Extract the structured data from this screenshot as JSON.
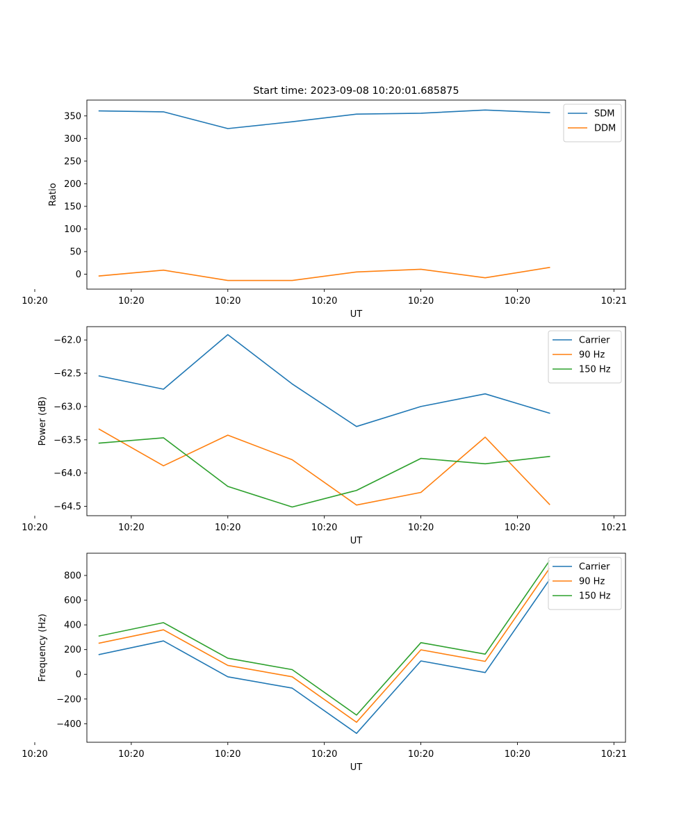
{
  "figure": {
    "title": "Start time: 2023-09-08 10:20:01.685875"
  },
  "chart_data": [
    {
      "type": "line",
      "xlabel": "UT",
      "ylabel": "Ratio",
      "x_index": [
        1,
        2,
        3,
        4,
        5,
        6,
        7,
        8
      ],
      "xlim": [
        0.81,
        9.18
      ],
      "x_ticks": [
        1,
        2.5,
        4,
        5.5,
        7,
        8.5
      ],
      "x_tick_positions": [
        0,
        1.5,
        3,
        4.5,
        6,
        7.5,
        9
      ],
      "x_tick_labels": [
        "10:20",
        "10:20",
        "10:20",
        "10:20",
        "10:20",
        "10:20",
        "10:21"
      ],
      "ylim": [
        -33,
        385
      ],
      "y_ticks": [
        0,
        50,
        100,
        150,
        200,
        250,
        300,
        350
      ],
      "y_tick_labels": [
        "0",
        "50",
        "100",
        "150",
        "200",
        "250",
        "300",
        "350"
      ],
      "legend_position": "top-right",
      "series": [
        {
          "name": "SDM",
          "color": "#1f77b4",
          "values": [
            361,
            359,
            322,
            337,
            354,
            356,
            363,
            357
          ]
        },
        {
          "name": "DDM",
          "color": "#ff7f0e",
          "values": [
            -4,
            9,
            -14,
            -14,
            5,
            11,
            -8,
            15
          ]
        }
      ]
    },
    {
      "type": "line",
      "xlabel": "UT",
      "ylabel": "Power (dB)",
      "x_index": [
        1,
        2,
        3,
        4,
        5,
        6,
        7,
        8
      ],
      "xlim": [
        0.81,
        9.18
      ],
      "x_tick_positions": [
        0,
        1.5,
        3,
        4.5,
        6,
        7.5,
        9
      ],
      "x_tick_labels": [
        "10:20",
        "10:20",
        "10:20",
        "10:20",
        "10:20",
        "10:20",
        "10:21"
      ],
      "ylim": [
        -64.64,
        -61.8
      ],
      "y_ticks": [
        -64.5,
        -64.0,
        -63.5,
        -63.0,
        -62.5,
        -62.0
      ],
      "y_tick_labels": [
        "−64.5",
        "−64.0",
        "−63.5",
        "−63.0",
        "−62.5",
        "−62.0"
      ],
      "legend_position": "top-right",
      "series": [
        {
          "name": "Carrier",
          "color": "#1f77b4",
          "values": [
            -62.54,
            -62.74,
            -61.92,
            -62.66,
            -63.3,
            -63.0,
            -62.81,
            -63.1
          ]
        },
        {
          "name": "90 Hz",
          "color": "#ff7f0e",
          "values": [
            -63.34,
            -63.89,
            -63.43,
            -63.8,
            -64.48,
            -64.29,
            -63.46,
            -64.47
          ]
        },
        {
          "name": "150 Hz",
          "color": "#2ca02c",
          "values": [
            -63.55,
            -63.47,
            -64.2,
            -64.51,
            -64.26,
            -63.78,
            -63.86,
            -63.75
          ]
        }
      ]
    },
    {
      "type": "line",
      "xlabel": "UT",
      "ylabel": "Frequency (Hz)",
      "x_index": [
        1,
        2,
        3,
        4,
        5,
        6,
        7,
        8
      ],
      "xlim": [
        0.81,
        9.18
      ],
      "x_tick_positions": [
        0,
        1.5,
        3,
        4.5,
        6,
        7.5,
        9
      ],
      "x_tick_labels": [
        "10:20",
        "10:20",
        "10:20",
        "10:20",
        "10:20",
        "10:20",
        "10:21"
      ],
      "ylim": [
        -550,
        980
      ],
      "y_ticks": [
        -400,
        -200,
        0,
        200,
        400,
        600,
        800
      ],
      "y_tick_labels": [
        "−400",
        "−200",
        "0",
        "200",
        "400",
        "600",
        "800"
      ],
      "legend_position": "top-right",
      "series": [
        {
          "name": "Carrier",
          "color": "#1f77b4",
          "values": [
            160,
            270,
            -20,
            -112,
            -478,
            108,
            14,
            766
          ]
        },
        {
          "name": "90 Hz",
          "color": "#ff7f0e",
          "values": [
            252,
            360,
            72,
            -20,
            -388,
            198,
            105,
            858
          ]
        },
        {
          "name": "150 Hz",
          "color": "#2ca02c",
          "values": [
            310,
            418,
            130,
            38,
            -330,
            256,
            163,
            920
          ]
        }
      ]
    }
  ]
}
